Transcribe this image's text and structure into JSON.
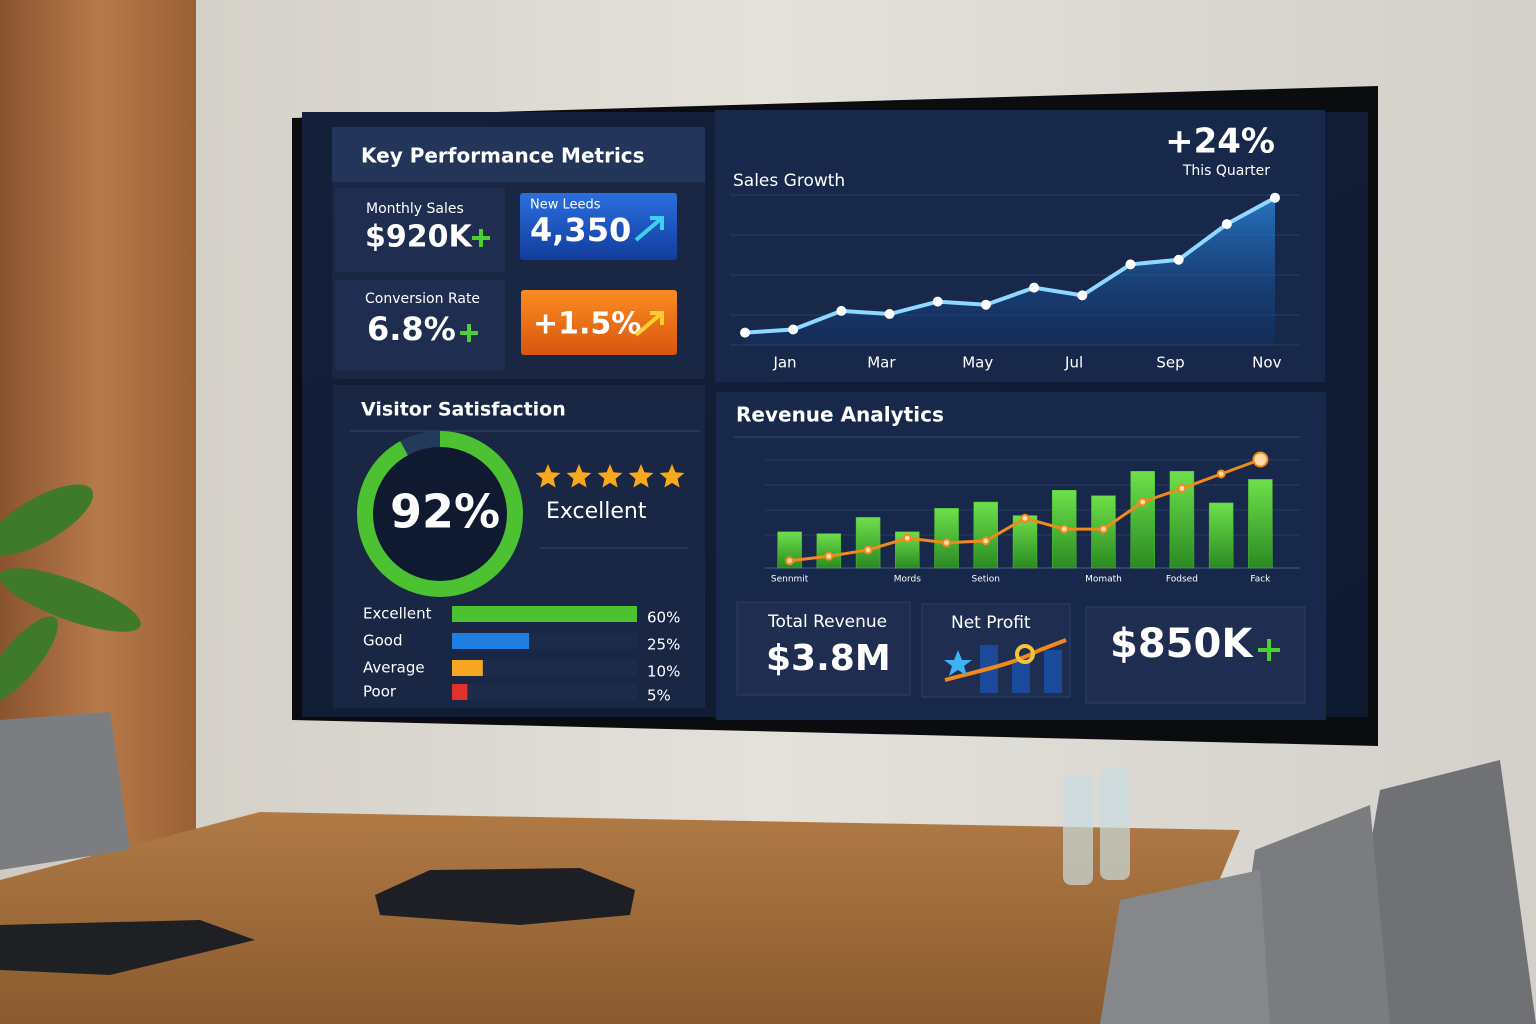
{
  "kpis": {
    "title": "Key Performance Metrics",
    "tiles": [
      {
        "label": "Monthly Sales",
        "value": "$920K"
      },
      {
        "label": "New Leeds",
        "value": "4,350"
      },
      {
        "label": "Conversion Rate",
        "value": "6.8%"
      },
      {
        "value": "+1.5%"
      }
    ]
  },
  "satisfaction": {
    "title": "Visitor Satisfaction",
    "score": 92,
    "score_label": "92%",
    "stars": 5,
    "rating": "Excellent",
    "breakdown": {
      "categories": [
        "Excellent",
        "Good",
        "Average",
        "Poor"
      ],
      "values": [
        60,
        25,
        10,
        5
      ],
      "value_labels": [
        "60%",
        "25%",
        "10%",
        "5%"
      ],
      "colors": [
        "#4cc232",
        "#1f7fe0",
        "#f5a623",
        "#e0312c"
      ]
    }
  },
  "summary": [
    {
      "label": "Total Revenue",
      "value": "$3.8M"
    },
    {
      "label": "Net Profit"
    },
    {
      "value": "$850K"
    }
  ],
  "chart_data": [
    {
      "type": "line",
      "title": "Sales Growth",
      "change": "+24%",
      "change_label": "This Quarter",
      "categories": [
        "Jan",
        null,
        "Mar",
        null,
        "May",
        null,
        "Jul",
        null,
        "Sep",
        null,
        "Nov",
        null
      ],
      "values": [
        8,
        10,
        22,
        20,
        28,
        26,
        37,
        32,
        52,
        55,
        78,
        95
      ],
      "ylim": [
        0,
        100
      ],
      "color": "#8fd8ff"
    },
    {
      "type": "bar",
      "title": "Revenue Analytics",
      "categories": [
        "Sennmit",
        null,
        null,
        "Mords",
        null,
        "Setion",
        null,
        null,
        "Momath",
        null,
        "Fodsed",
        null,
        "Fack"
      ],
      "values": [
        40,
        38,
        56,
        40,
        66,
        73,
        58,
        86,
        80,
        107,
        107,
        72,
        98
      ],
      "trend": [
        8,
        13,
        20,
        33,
        28,
        30,
        55,
        43,
        43,
        73,
        88,
        104,
        120
      ],
      "ylim": [
        0,
        125
      ],
      "color": "#4cc232",
      "trend_color": "#f08a1c"
    }
  ]
}
